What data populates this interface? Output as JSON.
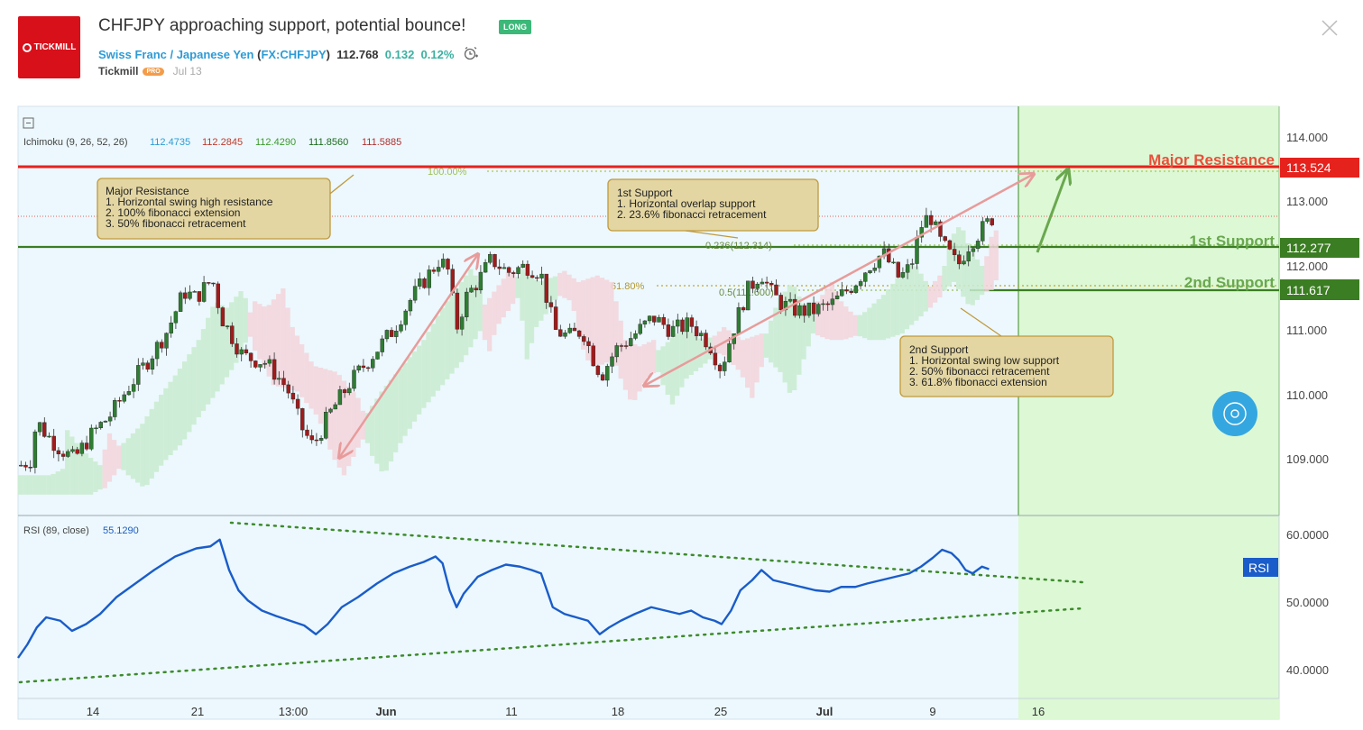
{
  "header": {
    "logo_text": "TICKMILL",
    "title": "CHFJPY approaching support, potential bounce!",
    "badge": "LONG",
    "pair_name": "Swiss Franc / Japanese Yen",
    "symbol_open": "(",
    "symbol": "FX:CHFJPY",
    "symbol_close": ")",
    "price": "112.768",
    "change": "0.132",
    "change_pct": "0.12%",
    "author": "Tickmill",
    "author_badge": "PRO",
    "date": "Jul 13"
  },
  "ichimoku": {
    "label": "Ichimoku (9, 26, 52, 26)",
    "values": [
      "112.4735",
      "112.2845",
      "112.4290",
      "111.8560",
      "111.5885"
    ],
    "colors": [
      "#2d9bd6",
      "#c0392b",
      "#3d9a2e",
      "#1e6b1e",
      "#b03030"
    ]
  },
  "rsi": {
    "label": "RSI (89, close)",
    "value": "55.1290",
    "tag": "RSI",
    "ticks": [
      "60.0000",
      "50.0000",
      "40.0000"
    ]
  },
  "price_axis": {
    "ticks": [
      "114.000",
      "113.000",
      "112.000",
      "111.000",
      "110.000",
      "109.000"
    ]
  },
  "x_axis": {
    "labels": [
      "14",
      "21",
      "13:00",
      "Jun",
      "11",
      "18",
      "25",
      "Jul",
      "9",
      "16"
    ]
  },
  "levels": {
    "major_resistance": {
      "label": "Major Resistance",
      "price": "113.524",
      "color": "#e6221d"
    },
    "first_support": {
      "label": "1st Support",
      "price": "112.277",
      "color": "#3b7d22"
    },
    "second_support": {
      "label": "2nd Support",
      "price": "111.617",
      "color": "#3b7d22"
    }
  },
  "fib_labels": {
    "f100": "100.00%",
    "f0236": "0.236(112.314)",
    "f618": "61.80%",
    "f05": "0.5(111.600)"
  },
  "callouts": {
    "major": [
      "Major Resistance",
      "1. Horizontal swing high resistance",
      "2. 100% fibonacci extension",
      "3. 50% fibonacci retracement"
    ],
    "first": [
      "1st Support",
      "1. Horizontal overlap support",
      "2. 23.6% fibonacci retracement"
    ],
    "second": [
      "2nd Support",
      "1. Horizontal swing low support",
      "2. 50% fibonacci retracement",
      "3. 61.8% fibonacci extension"
    ]
  },
  "chart_data": [
    {
      "type": "candlestick",
      "title": "CHFJPY",
      "ylim": [
        108.3,
        114.5
      ],
      "x_labels": [
        "14",
        "21",
        "13:00",
        "Jun",
        "11",
        "18",
        "25",
        "Jul",
        "9",
        "16"
      ],
      "price_path": [
        [
          0,
          108.9
        ],
        [
          10,
          109.0
        ],
        [
          14,
          109.6
        ],
        [
          22,
          109.4
        ],
        [
          32,
          109.2
        ],
        [
          46,
          109.0
        ],
        [
          62,
          109.4
        ],
        [
          78,
          109.7
        ],
        [
          92,
          110.1
        ],
        [
          108,
          110.5
        ],
        [
          126,
          111.0
        ],
        [
          140,
          111.6
        ],
        [
          150,
          111.5
        ],
        [
          164,
          111.8
        ],
        [
          172,
          111.2
        ],
        [
          190,
          110.6
        ],
        [
          210,
          110.5
        ],
        [
          228,
          110.1
        ],
        [
          240,
          109.5
        ],
        [
          250,
          109.2
        ],
        [
          264,
          109.7
        ],
        [
          282,
          110.2
        ],
        [
          300,
          110.6
        ],
        [
          318,
          111.0
        ],
        [
          334,
          111.5
        ],
        [
          350,
          111.9
        ],
        [
          358,
          112.1
        ],
        [
          366,
          111.9
        ],
        [
          372,
          111.0
        ],
        [
          380,
          111.5
        ],
        [
          392,
          111.8
        ],
        [
          402,
          112.1
        ],
        [
          416,
          111.9
        ],
        [
          432,
          112.0
        ],
        [
          444,
          111.9
        ],
        [
          456,
          111.0
        ],
        [
          468,
          110.9
        ],
        [
          480,
          111.0
        ],
        [
          488,
          110.6
        ],
        [
          496,
          110.3
        ],
        [
          508,
          110.7
        ],
        [
          522,
          110.9
        ],
        [
          540,
          111.2
        ],
        [
          556,
          111.0
        ],
        [
          572,
          111.1
        ],
        [
          588,
          110.8
        ],
        [
          598,
          110.4
        ],
        [
          608,
          111.0
        ],
        [
          620,
          111.6
        ],
        [
          632,
          111.9
        ],
        [
          640,
          111.6
        ],
        [
          650,
          111.4
        ],
        [
          664,
          111.3
        ],
        [
          676,
          111.3
        ],
        [
          692,
          111.4
        ],
        [
          710,
          111.7
        ],
        [
          724,
          112.0
        ],
        [
          736,
          112.2
        ],
        [
          750,
          111.8
        ],
        [
          760,
          112.0
        ],
        [
          768,
          112.6
        ],
        [
          776,
          112.8
        ],
        [
          784,
          112.4
        ],
        [
          792,
          112.2
        ],
        [
          800,
          112.0
        ],
        [
          808,
          112.3
        ],
        [
          822,
          112.6
        ],
        [
          832,
          112.8
        ]
      ],
      "levels": [
        113.524,
        112.277,
        111.617
      ]
    },
    {
      "type": "line",
      "title": "RSI (89, close)",
      "ylim": [
        36,
        62
      ],
      "series": [
        {
          "name": "RSI",
          "points": [
            [
              0,
              42
            ],
            [
              8,
              44
            ],
            [
              16,
              46.5
            ],
            [
              24,
              48
            ],
            [
              36,
              47.5
            ],
            [
              46,
              46
            ],
            [
              58,
              47
            ],
            [
              70,
              48.5
            ],
            [
              84,
              51
            ],
            [
              100,
              53
            ],
            [
              116,
              55
            ],
            [
              134,
              57
            ],
            [
              152,
              58.2
            ],
            [
              164,
              58.5
            ],
            [
              172,
              59.5
            ],
            [
              180,
              55
            ],
            [
              188,
              52
            ],
            [
              196,
              50.5
            ],
            [
              208,
              49
            ],
            [
              220,
              48.2
            ],
            [
              232,
              47.5
            ],
            [
              244,
              46.8
            ],
            [
              254,
              45.5
            ],
            [
              264,
              47
            ],
            [
              276,
              49.5
            ],
            [
              290,
              51
            ],
            [
              306,
              53
            ],
            [
              320,
              54.5
            ],
            [
              334,
              55.5
            ],
            [
              346,
              56.2
            ],
            [
              356,
              57
            ],
            [
              362,
              56
            ],
            [
              368,
              52
            ],
            [
              374,
              49.5
            ],
            [
              380,
              51.5
            ],
            [
              392,
              54
            ],
            [
              404,
              55
            ],
            [
              416,
              55.8
            ],
            [
              428,
              55.5
            ],
            [
              438,
              55
            ],
            [
              446,
              54.5
            ],
            [
              456,
              49.5
            ],
            [
              466,
              48.5
            ],
            [
              476,
              48
            ],
            [
              486,
              47.5
            ],
            [
              496,
              45.5
            ],
            [
              504,
              46.5
            ],
            [
              514,
              47.5
            ],
            [
              526,
              48.5
            ],
            [
              540,
              49.5
            ],
            [
              552,
              49
            ],
            [
              564,
              48.5
            ],
            [
              574,
              49
            ],
            [
              584,
              48
            ],
            [
              594,
              47.5
            ],
            [
              600,
              47
            ],
            [
              608,
              49
            ],
            [
              616,
              52
            ],
            [
              626,
              53.5
            ],
            [
              634,
              55
            ],
            [
              644,
              53.5
            ],
            [
              656,
              53
            ],
            [
              668,
              52.5
            ],
            [
              680,
              52
            ],
            [
              692,
              51.8
            ],
            [
              702,
              52.5
            ],
            [
              714,
              52.5
            ],
            [
              724,
              53
            ],
            [
              736,
              53.5
            ],
            [
              748,
              54
            ],
            [
              760,
              54.5
            ],
            [
              770,
              55.5
            ],
            [
              780,
              56.8
            ],
            [
              788,
              58
            ],
            [
              796,
              57.5
            ],
            [
              802,
              56.5
            ],
            [
              808,
              55
            ],
            [
              814,
              54.5
            ],
            [
              822,
              55.5
            ],
            [
              828,
              55.13
            ]
          ]
        }
      ]
    }
  ]
}
